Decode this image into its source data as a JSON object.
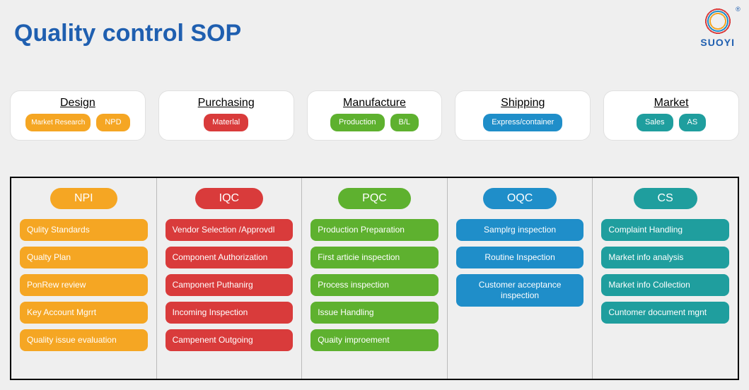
{
  "title": "Quality control SOP",
  "brand": {
    "name": "SUOYI",
    "reg": "®"
  },
  "colors": {
    "orange": "#f5a623",
    "red": "#d93b3b",
    "green": "#5eb12f",
    "blue": "#1f8ec9",
    "teal": "#1f9e9e"
  },
  "stages": [
    {
      "header": "Design",
      "color": "orange",
      "pills": [
        {
          "label": "Market Research",
          "small": true
        },
        {
          "label": "NPD"
        }
      ]
    },
    {
      "header": "Purchasing",
      "color": "red",
      "pills": [
        {
          "label": "Materlal"
        }
      ]
    },
    {
      "header": "Manufacture",
      "color": "green",
      "pills": [
        {
          "label": "Production"
        },
        {
          "label": "B/L"
        }
      ]
    },
    {
      "header": "Shipping",
      "color": "blue",
      "pills": [
        {
          "label": "Express/container"
        }
      ]
    },
    {
      "header": "Market",
      "color": "teal",
      "pills": [
        {
          "label": "Sales"
        },
        {
          "label": "AS"
        }
      ]
    }
  ],
  "qc_columns": [
    {
      "header": "NPI",
      "color": "orange",
      "item_align": "left",
      "items": [
        "Qulity Standards",
        "Qualty Plan",
        "PonRew review",
        "Key Account Mgrrt",
        "Quality issue evaluation"
      ]
    },
    {
      "header": "IQC",
      "color": "red",
      "item_align": "left",
      "items": [
        "Vendor Selection /Approvdl",
        "Component Authorization",
        "Camponert Puthanirg",
        "Incoming Inspection",
        "Campenent Outgoing"
      ]
    },
    {
      "header": "PQC",
      "color": "green",
      "item_align": "left",
      "items": [
        "Production Preparation",
        "First articie inspection",
        "Process inspection",
        "Issue Handling",
        "Quaity improement"
      ]
    },
    {
      "header": "OQC",
      "color": "blue",
      "item_align": "center",
      "items": [
        "Samplrg inspection",
        "Routine Inspection",
        "Customer acceptance inspection"
      ]
    },
    {
      "header": "CS",
      "color": "teal",
      "item_align": "left",
      "items": [
        "Complaint Handling",
        "Market info analysis",
        "Market info Collection",
        "Cuntomer document mgnt"
      ]
    }
  ]
}
